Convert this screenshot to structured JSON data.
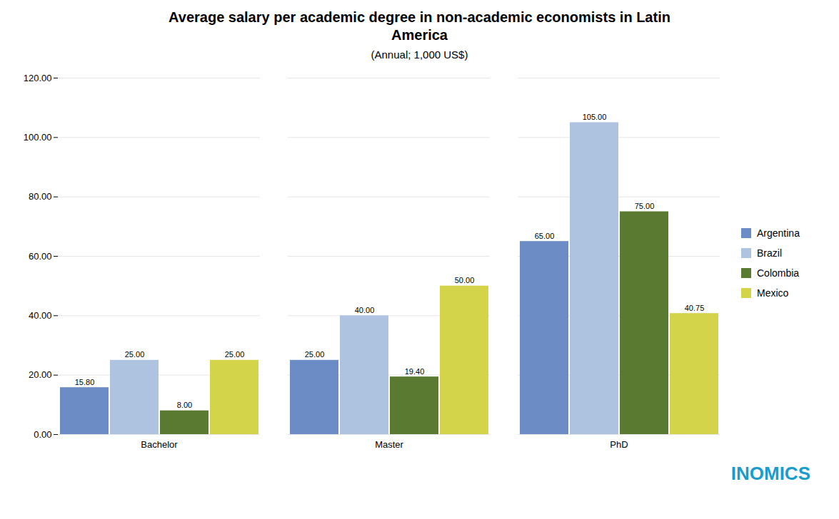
{
  "chart_data": {
    "type": "bar",
    "title": "Average salary per academic degree in non-academic economists in Latin\nAmerica",
    "subtitle": "(Annual; 1,000 US$)",
    "categories": [
      "Bachelor",
      "Master",
      "PhD"
    ],
    "series": [
      {
        "name": "Argentina",
        "color": "#6b8cc4",
        "values": [
          15.8,
          25.0,
          65.0
        ],
        "value_labels": [
          "15.80",
          "25.00",
          "65.00"
        ]
      },
      {
        "name": "Brazil",
        "color": "#adc3e0",
        "values": [
          25.0,
          40.0,
          105.0
        ],
        "value_labels": [
          "25.00",
          "40.00",
          "105.00"
        ]
      },
      {
        "name": "Colombia",
        "color": "#5a7a32",
        "values": [
          8.0,
          19.4,
          75.0
        ],
        "value_labels": [
          "8.00",
          "19.40",
          "75.00"
        ]
      },
      {
        "name": "Mexico",
        "color": "#d4d44a",
        "values": [
          25.0,
          50.0,
          40.75
        ],
        "value_labels": [
          "25.00",
          "50.00",
          "40.75"
        ]
      }
    ],
    "ylim": [
      0,
      120
    ],
    "yticks": [
      {
        "value": 0,
        "label": "0.00"
      },
      {
        "value": 20,
        "label": "20.00"
      },
      {
        "value": 40,
        "label": "40.00"
      },
      {
        "value": 60,
        "label": "60.00"
      },
      {
        "value": 80,
        "label": "80.00"
      },
      {
        "value": 100,
        "label": "100.00"
      },
      {
        "value": 120,
        "label": "120.00"
      }
    ],
    "grid": true,
    "legend": "right",
    "data_labels": true,
    "annotations": [
      {
        "text": "INOMICS",
        "color": "#1a9cce"
      }
    ]
  }
}
